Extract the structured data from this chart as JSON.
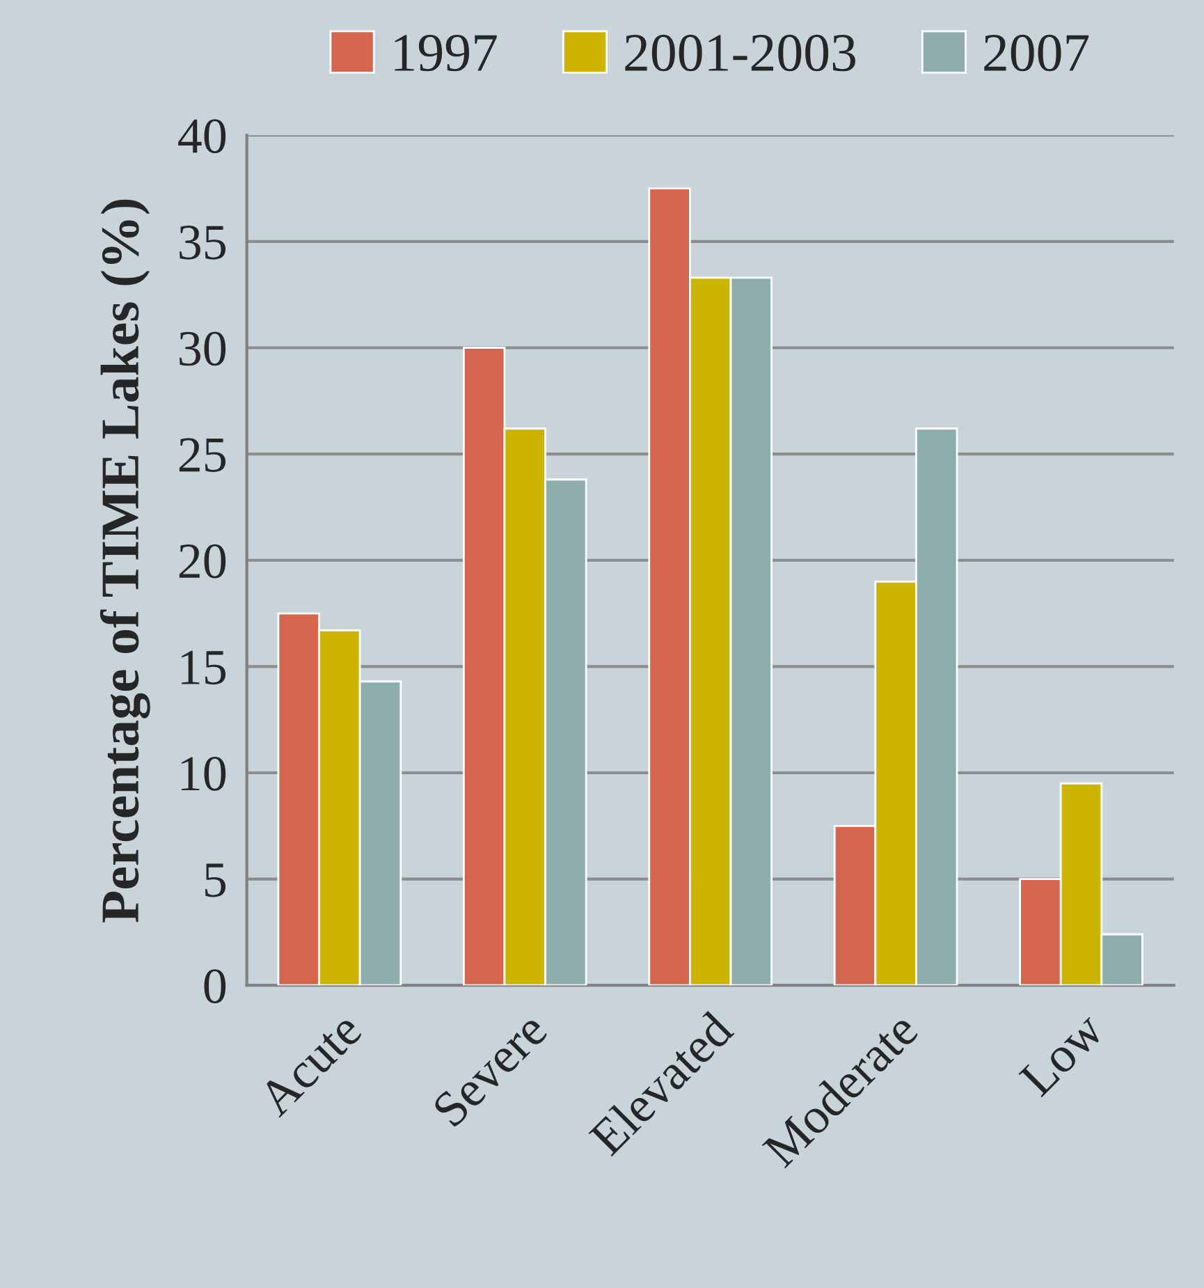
{
  "chart_data": {
    "type": "bar",
    "ylabel": "Percentage of TIME Lakes (%)",
    "categories": [
      "Acute",
      "Severe",
      "Elevated",
      "Moderate",
      "Low"
    ],
    "series": [
      {
        "name": "1997",
        "color": "#d4654e",
        "values": [
          17.5,
          30.0,
          37.5,
          7.5,
          5.0
        ]
      },
      {
        "name": "2001-2003",
        "color": "#ccb400",
        "values": [
          16.7,
          26.2,
          33.3,
          19.0,
          9.5
        ]
      },
      {
        "name": "2007",
        "color": "#8eadad",
        "values": [
          14.3,
          23.8,
          33.3,
          26.2,
          2.4
        ]
      }
    ],
    "ylim": [
      0,
      40
    ],
    "yticks": [
      0,
      5,
      10,
      15,
      20,
      25,
      30,
      35,
      40
    ],
    "grid": "y",
    "legend": "top"
  }
}
